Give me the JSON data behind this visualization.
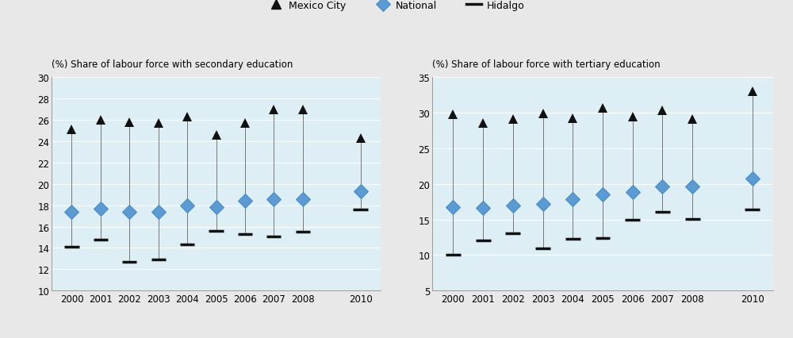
{
  "years": [
    2000,
    2001,
    2002,
    2003,
    2004,
    2005,
    2006,
    2007,
    2008,
    2010
  ],
  "secondary": {
    "mexico_city": [
      25.1,
      26.0,
      25.8,
      25.7,
      26.3,
      24.6,
      25.7,
      27.0,
      27.0,
      24.3
    ],
    "national": [
      17.4,
      17.7,
      17.4,
      17.4,
      18.0,
      17.8,
      18.4,
      18.6,
      18.6,
      19.3
    ],
    "hidalgo": [
      14.1,
      14.8,
      12.7,
      12.9,
      14.3,
      15.6,
      15.3,
      15.1,
      15.5,
      17.6
    ],
    "ylim": [
      10,
      30
    ],
    "yticks": [
      10,
      12,
      14,
      16,
      18,
      20,
      22,
      24,
      26,
      28,
      30
    ],
    "ylabel": "(%) Share of labour force with secondary education"
  },
  "tertiary": {
    "mexico_city": [
      29.8,
      28.5,
      29.1,
      29.9,
      29.2,
      30.7,
      29.4,
      30.3,
      29.1,
      33.0
    ],
    "national": [
      16.7,
      16.6,
      17.0,
      17.2,
      17.9,
      18.5,
      18.9,
      19.6,
      19.6,
      20.7
    ],
    "hidalgo": [
      10.0,
      12.0,
      13.0,
      10.9,
      12.3,
      12.4,
      15.0,
      16.1,
      15.1,
      16.4
    ],
    "ylim": [
      5,
      35
    ],
    "yticks": [
      5,
      10,
      15,
      20,
      25,
      30,
      35
    ],
    "ylabel": "(%) Share of labour force with tertiary education"
  },
  "bg_color": "#ddeef5",
  "fig_bg": "#e8e8e8",
  "line_color": "#777777",
  "triangle_color": "#111111",
  "diamond_color": "#5b9bd5",
  "hidalgo_color": "#111111",
  "marker_size_triangle": 9,
  "marker_size_diamond": 9,
  "hidalgo_lw": 2.5,
  "legend_labels": [
    "Mexico City",
    "National",
    "Hidalgo"
  ]
}
